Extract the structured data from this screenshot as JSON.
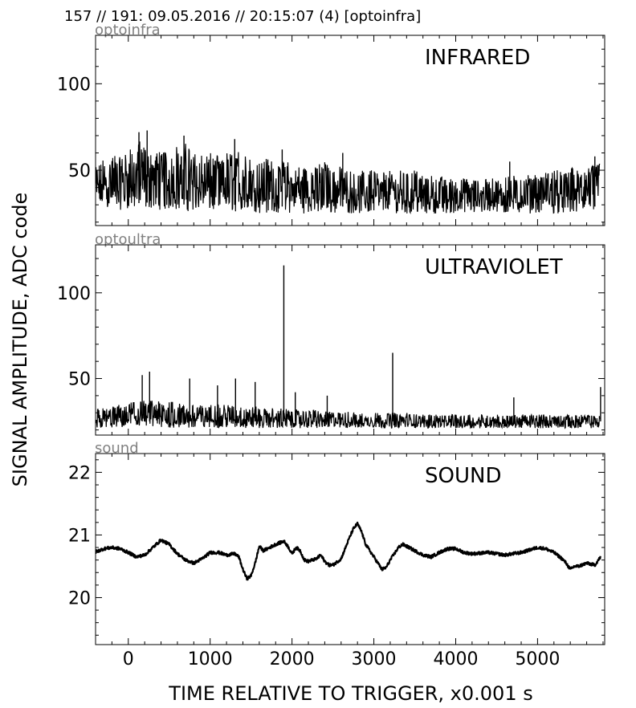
{
  "header": {
    "title": "157 // 191:   09.05.2016 // 20:15:07 (4)  [optoinfra]"
  },
  "figure": {
    "ylabel": "SIGNAL AMPLITUDE,  ADC code",
    "xlabel": "TIME RELATIVE TO TRIGGER,   x0.001 s",
    "line_color": "#000000",
    "tag_color": "#808080"
  },
  "chart_data": [
    {
      "type": "line",
      "channel": "optoinfra",
      "annotation": "INFRARED",
      "xlim": [
        -400,
        5820
      ],
      "ylim": [
        18,
        128
      ],
      "xticks": [
        0,
        1000,
        2000,
        3000,
        4000,
        5000
      ],
      "yticks": [
        50,
        100
      ],
      "ytick_labels": [
        "50",
        "100"
      ],
      "grid": false,
      "series": [
        {
          "x": [
            -400,
            -300,
            -200,
            -100,
            0,
            100,
            200,
            300,
            400,
            500,
            600,
            700,
            800,
            900,
            1000,
            1100,
            1200,
            1300,
            1400,
            1500,
            1600,
            1700,
            1800,
            1900,
            2000,
            2100,
            2200,
            2300,
            2400,
            2500,
            2600,
            2700,
            2800,
            2900,
            3000,
            3100,
            3200,
            3300,
            3400,
            3500,
            3600,
            3700,
            3800,
            3900,
            4000,
            4100,
            4200,
            4300,
            4400,
            4500,
            4600,
            4700,
            4800,
            4900,
            5000,
            5100,
            5200,
            5300,
            5400,
            5500,
            5600,
            5700,
            5760
          ],
          "upper": [
            55,
            58,
            60,
            62,
            63,
            66,
            68,
            64,
            63,
            62,
            64,
            66,
            60,
            60,
            62,
            58,
            60,
            61,
            60,
            56,
            55,
            58,
            55,
            56,
            54,
            53,
            52,
            53,
            55,
            52,
            52,
            53,
            50,
            52,
            50,
            49,
            51,
            50,
            49,
            50,
            48,
            48,
            47,
            46,
            47,
            48,
            47,
            46,
            45,
            46,
            46,
            47,
            47,
            48,
            49,
            49,
            50,
            51,
            51,
            52,
            52,
            54,
            55
          ],
          "lower": [
            28,
            29,
            28,
            27,
            28,
            27,
            27,
            28,
            27,
            27,
            27,
            26,
            27,
            27,
            26,
            26,
            26,
            26,
            25,
            25,
            25,
            25,
            25,
            25,
            25,
            25,
            25,
            25,
            25,
            25,
            25,
            25,
            25,
            25,
            25,
            25,
            25,
            25,
            25,
            25,
            25,
            25,
            25,
            25,
            25,
            25,
            25,
            25,
            25,
            25,
            25,
            25,
            25,
            25,
            25,
            25,
            25,
            25,
            25,
            25,
            25,
            25,
            26
          ],
          "spikes": [
            {
              "x": 130,
              "y": 72
            },
            {
              "x": 230,
              "y": 73
            },
            {
              "x": 680,
              "y": 70
            },
            {
              "x": 1300,
              "y": 68
            },
            {
              "x": 1880,
              "y": 62
            },
            {
              "x": 2620,
              "y": 60
            },
            {
              "x": 4660,
              "y": 55
            },
            {
              "x": 5700,
              "y": 58
            }
          ]
        }
      ]
    },
    {
      "type": "line",
      "channel": "optoultra",
      "annotation": "ULTRAVIOLET",
      "xlim": [
        -400,
        5820
      ],
      "ylim": [
        17,
        128
      ],
      "xticks": [
        0,
        1000,
        2000,
        3000,
        4000,
        5000
      ],
      "yticks": [
        50,
        100
      ],
      "ytick_labels": [
        "50",
        "100"
      ],
      "grid": false,
      "series": [
        {
          "x": [
            -400,
            -200,
            0,
            200,
            400,
            600,
            800,
            1000,
            1200,
            1400,
            1600,
            1800,
            2000,
            2200,
            2400,
            2600,
            2800,
            3000,
            3200,
            3400,
            3600,
            3800,
            4000,
            4200,
            4400,
            4600,
            4800,
            5000,
            5200,
            5400,
            5600,
            5760
          ],
          "upper": [
            32,
            34,
            36,
            37,
            37,
            36,
            35,
            35,
            35,
            34,
            34,
            33,
            32,
            32,
            31,
            31,
            30,
            30,
            30,
            30,
            29,
            29,
            29,
            29,
            29,
            29,
            29,
            29,
            29,
            29,
            29,
            29
          ],
          "lower": [
            21,
            21,
            21,
            21,
            21,
            21,
            21,
            21,
            21,
            21,
            21,
            21,
            21,
            21,
            21,
            21,
            21,
            21,
            21,
            21,
            21,
            21,
            21,
            21,
            21,
            21,
            21,
            21,
            21,
            21,
            21,
            21
          ],
          "spikes": [
            {
              "x": 170,
              "y": 52
            },
            {
              "x": 260,
              "y": 54
            },
            {
              "x": 750,
              "y": 50
            },
            {
              "x": 1090,
              "y": 46
            },
            {
              "x": 1310,
              "y": 50
            },
            {
              "x": 1550,
              "y": 48
            },
            {
              "x": 1900,
              "y": 116
            },
            {
              "x": 2040,
              "y": 42
            },
            {
              "x": 2430,
              "y": 40
            },
            {
              "x": 3230,
              "y": 65
            },
            {
              "x": 4710,
              "y": 39
            },
            {
              "x": 5770,
              "y": 45
            }
          ]
        }
      ]
    },
    {
      "type": "line",
      "channel": "sound",
      "annotation": "SOUND",
      "xlim": [
        -400,
        5820
      ],
      "ylim": [
        19.25,
        22.3
      ],
      "xticks": [
        0,
        1000,
        2000,
        3000,
        4000,
        5000
      ],
      "yticks": [
        20,
        21,
        22
      ],
      "ytick_labels": [
        "20",
        "21",
        "22"
      ],
      "grid": false,
      "series": [
        {
          "x": [
            -400,
            -300,
            -200,
            -100,
            0,
            100,
            200,
            300,
            400,
            500,
            600,
            700,
            800,
            900,
            1000,
            1100,
            1200,
            1300,
            1350,
            1400,
            1450,
            1500,
            1550,
            1600,
            1650,
            1700,
            1800,
            1900,
            1950,
            2000,
            2050,
            2100,
            2150,
            2200,
            2300,
            2350,
            2400,
            2450,
            2500,
            2600,
            2700,
            2750,
            2800,
            2850,
            2900,
            3000,
            3100,
            3150,
            3200,
            3300,
            3350,
            3400,
            3500,
            3600,
            3700,
            3800,
            3900,
            4000,
            4100,
            4200,
            4400,
            4600,
            4800,
            5000,
            5100,
            5200,
            5300,
            5350,
            5400,
            5450,
            5500,
            5600,
            5700,
            5770
          ],
          "values": [
            20.73,
            20.78,
            20.8,
            20.78,
            20.72,
            20.65,
            20.68,
            20.8,
            20.92,
            20.85,
            20.7,
            20.6,
            20.55,
            20.62,
            20.72,
            20.72,
            20.68,
            20.7,
            20.65,
            20.45,
            20.3,
            20.35,
            20.55,
            20.82,
            20.75,
            20.78,
            20.85,
            20.9,
            20.82,
            20.7,
            20.8,
            20.75,
            20.6,
            20.58,
            20.62,
            20.68,
            20.58,
            20.52,
            20.52,
            20.62,
            20.95,
            21.1,
            21.18,
            21.05,
            20.85,
            20.65,
            20.45,
            20.48,
            20.6,
            20.8,
            20.85,
            20.82,
            20.75,
            20.68,
            20.65,
            20.72,
            20.78,
            20.78,
            20.72,
            20.7,
            20.72,
            20.68,
            20.72,
            20.8,
            20.78,
            20.72,
            20.62,
            20.55,
            20.45,
            20.5,
            20.5,
            20.55,
            20.52,
            20.65
          ]
        }
      ]
    }
  ]
}
